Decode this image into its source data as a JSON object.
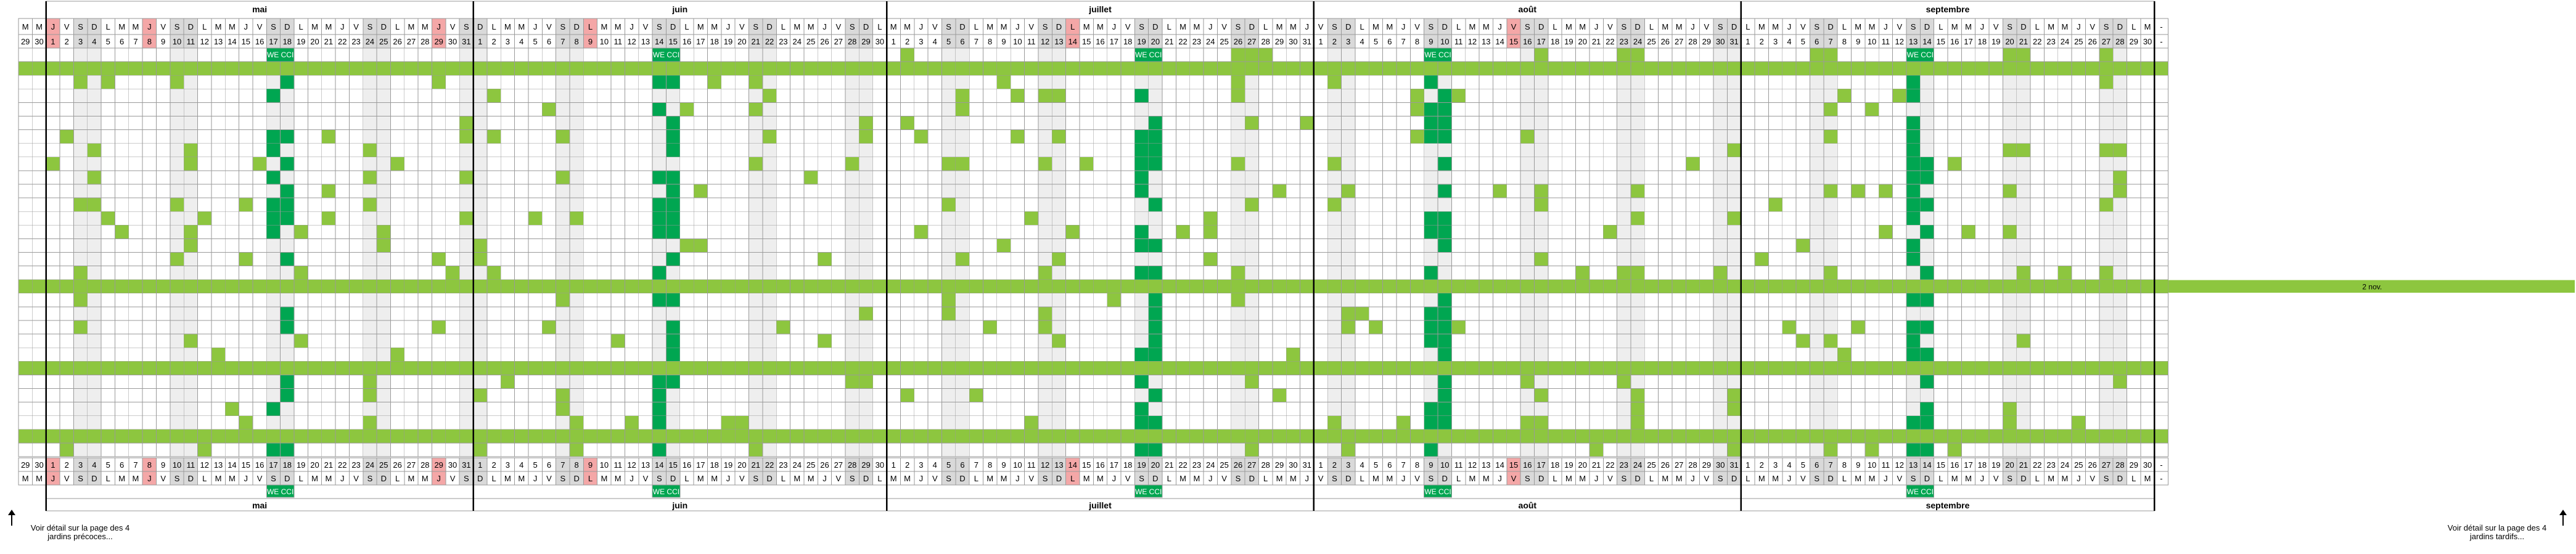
{
  "months": [
    {
      "name": "mai",
      "start": 0,
      "days": 31
    },
    {
      "name": "juin",
      "start": 31,
      "days": 30
    },
    {
      "name": "juillet",
      "start": 61,
      "days": 31
    },
    {
      "name": "août",
      "start": 92,
      "days": 31
    },
    {
      "name": "septembre",
      "start": 123,
      "days": 30
    }
  ],
  "weekday_letters": [
    "L",
    "M",
    "M",
    "J",
    "V",
    "S",
    "D"
  ],
  "lead_columns": [
    {
      "letter": "M",
      "number": "29"
    },
    {
      "letter": "M",
      "number": "30"
    }
  ],
  "trail_column": {
    "letter": "-",
    "number": "-"
  },
  "first_day_weekday_index": 3,
  "holidays": [
    {
      "month": 0,
      "day": 1
    },
    {
      "month": 0,
      "day": 8
    },
    {
      "month": 0,
      "day": 29
    },
    {
      "month": 1,
      "day": 9
    },
    {
      "month": 2,
      "day": 14
    },
    {
      "month": 3,
      "day": 15
    }
  ],
  "we_cci_label": "WE CCI",
  "we_cci_weekends": [
    {
      "month": 0,
      "day": 17
    },
    {
      "month": 1,
      "day": 14
    },
    {
      "month": 2,
      "day": 19
    },
    {
      "month": 3,
      "day": 9
    },
    {
      "month": 4,
      "day": 13
    }
  ],
  "row_count": 30,
  "full_green_rows": [
    1,
    17,
    23,
    28
  ],
  "side_label": {
    "text": "2 nov.",
    "row": 17
  },
  "footer": {
    "left_note": "Voir détail sur la page des 4 jardins précoces...",
    "right_note": "Voir détail sur la page des 4 jardins tardifs..."
  },
  "colors": {
    "grid_line": "#9a9a9a",
    "month_divider": "#000000",
    "weekend_shade": "#d9d9d9",
    "weekend_body": "#eeeeee",
    "holiday": "#f4a7a7",
    "light_green": "#8dc63f",
    "dark_green": "#00a651",
    "we_cci_bg": "#00a651"
  }
}
